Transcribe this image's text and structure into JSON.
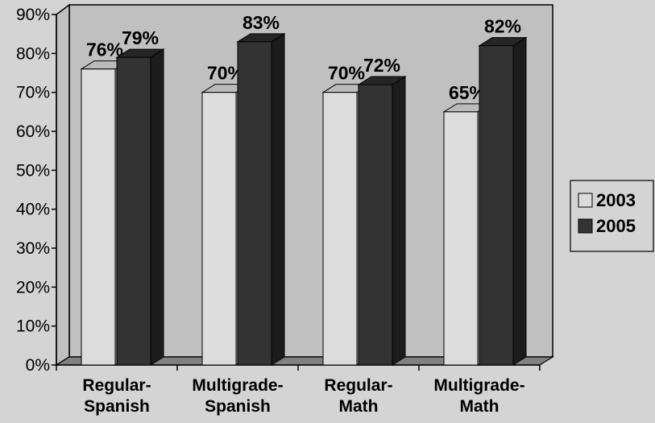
{
  "chart_data": {
    "type": "bar",
    "title": "",
    "xlabel": "",
    "ylabel": "",
    "categories": [
      [
        "Regular-",
        "Spanish"
      ],
      [
        "Multigrade-",
        "Spanish"
      ],
      [
        "Regular-",
        "Math"
      ],
      [
        "Multigrade-",
        "Math"
      ]
    ],
    "series": [
      {
        "name": "2003",
        "values": [
          76,
          70,
          70,
          65
        ],
        "labels": [
          "76%",
          "70%",
          "70%",
          "65%"
        ]
      },
      {
        "name": "2005",
        "values": [
          79,
          83,
          72,
          82
        ],
        "labels": [
          "79%",
          "83%",
          "72%",
          "82%"
        ]
      }
    ],
    "ylim": [
      0,
      90
    ],
    "yticks": [
      "0%",
      "10%",
      "20%",
      "30%",
      "40%",
      "50%",
      "60%",
      "70%",
      "80%",
      "90%"
    ],
    "grid": false,
    "legend_position": "right",
    "three_d": true
  },
  "colors": {
    "background": "#d4d4d4",
    "plot_area": "#c0c0c0",
    "series_2003": "#dcdcdc",
    "series_2005": "#333333",
    "floor": "#808080",
    "axis": "#000000"
  }
}
